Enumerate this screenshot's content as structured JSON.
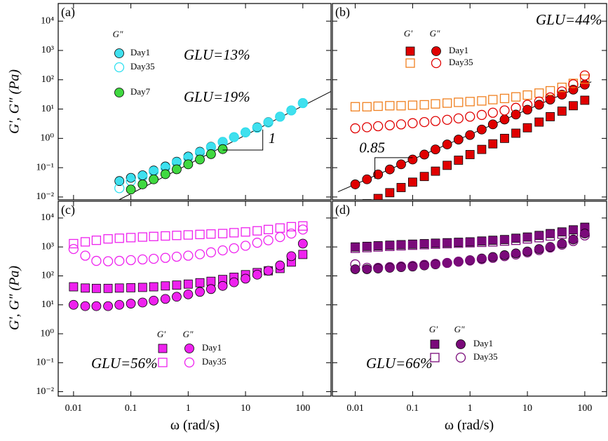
{
  "chart_data": [
    {
      "type": "scatter",
      "panel_label": "(a)",
      "ylabel": "G', G\" (Pa)",
      "xlog": true,
      "ylog": true,
      "xlim": [
        0.0054,
        310
      ],
      "ylim": [
        0.008,
        40000
      ],
      "xticks": [
        0.01,
        0.1,
        1,
        10,
        100
      ],
      "yticks": [
        {
          "value": 0.01,
          "label": "10⁻²"
        },
        {
          "value": 0.1,
          "label": "10⁻¹"
        },
        {
          "value": 1,
          "label": "10⁰"
        },
        {
          "value": 10,
          "label": "10¹"
        },
        {
          "value": 100,
          "label": "10²"
        },
        {
          "value": 1000,
          "label": "10³"
        },
        {
          "value": 10000,
          "label": "10⁴"
        }
      ],
      "quantities": [
        {
          "label": "G\"",
          "marker": "circle"
        }
      ],
      "series": [
        {
          "name": "Day1",
          "filled": true,
          "colors": [
            "#40e0ee"
          ],
          "x": [
            0.063,
            0.1,
            0.16,
            0.25,
            0.4,
            0.63,
            1,
            1.6,
            2.5,
            4,
            6.3,
            10,
            16,
            25,
            40,
            63,
            100
          ],
          "values": [
            [
              0.035,
              0.045,
              0.055,
              0.08,
              0.11,
              0.16,
              0.24,
              0.35,
              0.52,
              0.76,
              1.1,
              1.6,
              2.4,
              3.6,
              5.5,
              9,
              16
            ]
          ]
        },
        {
          "name": "Day35",
          "filled": false,
          "colors": [
            "#30e0f0"
          ],
          "x": [
            0.063,
            0.1,
            0.16,
            0.25,
            0.4,
            0.63,
            1,
            1.6,
            2.5,
            4,
            6.3,
            10,
            16,
            25,
            40,
            63,
            100
          ],
          "values": [
            [
              0.02,
              0.035,
              0.05,
              0.075,
              0.1,
              0.15,
              0.22,
              0.33,
              0.5,
              0.75,
              1.1,
              1.6,
              2.3,
              3.5,
              5.5,
              9,
              16
            ]
          ]
        },
        {
          "name": "Day7",
          "filled": true,
          "colors": [
            "#40d840"
          ],
          "x": [
            0.1,
            0.16,
            0.25,
            0.4,
            0.63,
            1,
            1.6,
            2.5,
            4
          ],
          "values": [
            [
              0.018,
              0.027,
              0.04,
              0.06,
              0.088,
              0.13,
              0.19,
              0.29,
              0.43
            ]
          ]
        }
      ],
      "annotations": [
        "GLU=13%",
        "GLU=19%"
      ],
      "fit_line": {
        "x": [
          0.062,
          310
        ],
        "values": [
          0.008,
          40
        ]
      },
      "slope_marker": {
        "x": [
          4,
          20,
          20
        ],
        "y": [
          0.4,
          0.4,
          2
        ],
        "label": "1"
      }
    },
    {
      "type": "scatter",
      "panel_label": "(b)",
      "xlog": true,
      "ylog": true,
      "xlim": [
        0.004,
        240
      ],
      "ylim": [
        0.008,
        40000
      ],
      "xticks": [
        0.01,
        0.1,
        1,
        10,
        100
      ],
      "yticks": [
        0.01,
        0.1,
        1,
        10,
        100,
        1000,
        10000
      ],
      "x": [
        0.01,
        0.016,
        0.025,
        0.04,
        0.063,
        0.1,
        0.16,
        0.25,
        0.4,
        0.63,
        1,
        1.6,
        2.5,
        4,
        6.3,
        10,
        16,
        25,
        40,
        63,
        100
      ],
      "quantities": [
        {
          "label": "G'",
          "marker": "square"
        },
        {
          "label": "G\"",
          "marker": "circle"
        }
      ],
      "series": [
        {
          "name": "Day1",
          "filled": true,
          "colors": [
            "#e00000",
            "#e00000"
          ],
          "values": [
            [
              0.0038,
              0.0059,
              0.0089,
              0.014,
              0.021,
              0.032,
              0.05,
              0.076,
              0.12,
              0.18,
              0.28,
              0.42,
              0.65,
              1.0,
              1.5,
              2.3,
              3.6,
              5.5,
              8.5,
              13,
              20
            ],
            [
              0.027,
              0.04,
              0.059,
              0.087,
              0.13,
              0.19,
              0.28,
              0.42,
              0.62,
              0.91,
              1.3,
              2.0,
              3.0,
              4.4,
              6.5,
              9.5,
              14,
              21,
              31,
              46,
              68
            ]
          ]
        },
        {
          "name": "Day35",
          "filled": false,
          "colors": [
            "#f08020",
            "#e00000"
          ],
          "values": [
            [
              12,
              12,
              12.5,
              13,
              13,
              13.5,
              14,
              15,
              16,
              17,
              18,
              19,
              21,
              23,
              26,
              30,
              35,
              42,
              55,
              75,
              105
            ],
            [
              2.2,
              2.4,
              2.6,
              2.8,
              3.0,
              3.3,
              3.6,
              3.9,
              4.3,
              4.8,
              5.5,
              6.3,
              7.5,
              9,
              11,
              14,
              18,
              25,
              40,
              70,
              140
            ]
          ]
        }
      ],
      "annotations": [
        "GLU=44%"
      ],
      "fit_line": {
        "x": [
          0.005,
          130
        ],
        "values": [
          0.015,
          85
        ]
      },
      "slope_marker": {
        "x": [
          0.022,
          0.022,
          0.1
        ],
        "y": [
          0.042,
          0.22,
          0.22
        ],
        "label": "0.85"
      }
    },
    {
      "type": "scatter",
      "panel_label": "(c)",
      "ylabel": "G', G\" (Pa)",
      "xlabel": "ω (rad/s)",
      "xlog": true,
      "ylog": true,
      "xlim": [
        0.0054,
        310
      ],
      "ylim": [
        0.007,
        38000
      ],
      "xticks": [
        0.01,
        0.1,
        1,
        10,
        100
      ],
      "yticks": [
        {
          "value": 0.01,
          "label": "10⁻²"
        },
        {
          "value": 0.1,
          "label": "10⁻¹"
        },
        {
          "value": 1,
          "label": "10⁰"
        },
        {
          "value": 10,
          "label": "10¹"
        },
        {
          "value": 100,
          "label": "10²"
        },
        {
          "value": 1000,
          "label": "10³"
        },
        {
          "value": 10000,
          "label": "10⁴"
        }
      ],
      "x": [
        0.01,
        0.016,
        0.025,
        0.04,
        0.063,
        0.1,
        0.16,
        0.25,
        0.4,
        0.63,
        1,
        1.6,
        2.5,
        4,
        6.3,
        10,
        16,
        25,
        40,
        63,
        100
      ],
      "quantities": [
        {
          "label": "G'",
          "marker": "square"
        },
        {
          "label": "G\"",
          "marker": "circle"
        }
      ],
      "series": [
        {
          "name": "Day1",
          "filled": true,
          "colors": [
            "#ee22ee",
            "#ee22ee"
          ],
          "values": [
            [
              42,
              38,
              37,
              37,
              38,
              39,
              40,
              42,
              45,
              48,
              52,
              58,
              65,
              75,
              90,
              110,
              130,
              150,
              180,
              300,
              550
            ],
            [
              10,
              9,
              9,
              9,
              10,
              11,
              12,
              14,
              16,
              19,
              23,
              28,
              35,
              45,
              60,
              80,
              110,
              150,
              230,
              480,
              1300
            ]
          ]
        },
        {
          "name": "Day35",
          "filled": false,
          "colors": [
            "#ee22ee",
            "#ee22ee"
          ],
          "values": [
            [
              1300,
              1500,
              1700,
              1900,
              2000,
              2100,
              2200,
              2300,
              2400,
              2500,
              2600,
              2700,
              2800,
              2900,
              3100,
              3300,
              3600,
              4000,
              4500,
              5000,
              5300
            ],
            [
              850,
              500,
              330,
              320,
              330,
              350,
              370,
              390,
              420,
              460,
              500,
              560,
              650,
              760,
              900,
              1100,
              1400,
              1700,
              2200,
              2900,
              4000
            ]
          ]
        }
      ],
      "annotations": [
        "GLU=56%"
      ]
    },
    {
      "type": "scatter",
      "panel_label": "(d)",
      "xlabel": "ω (rad/s)",
      "xlog": true,
      "ylog": true,
      "xlim": [
        0.004,
        240
      ],
      "ylim": [
        0.007,
        38000
      ],
      "xticks": [
        0.01,
        0.1,
        1,
        10,
        100
      ],
      "yticks": [
        0.01,
        0.1,
        1,
        10,
        100,
        1000,
        10000
      ],
      "x": [
        0.01,
        0.016,
        0.025,
        0.04,
        0.063,
        0.1,
        0.16,
        0.25,
        0.4,
        0.63,
        1,
        1.6,
        2.5,
        4,
        6.3,
        10,
        16,
        25,
        40,
        63,
        100
      ],
      "quantities": [
        {
          "label": "G'",
          "marker": "square"
        },
        {
          "label": "G\"",
          "marker": "circle"
        }
      ],
      "series": [
        {
          "name": "Day1",
          "filled": true,
          "colors": [
            "#7a0a7a",
            "#7a0a7a"
          ],
          "values": [
            [
              1000,
              1050,
              1100,
              1150,
              1200,
              1250,
              1300,
              1350,
              1400,
              1450,
              1500,
              1600,
              1700,
              1800,
              2000,
              2200,
              2500,
              2900,
              3300,
              3900,
              4800
            ],
            [
              170,
              170,
              180,
              190,
              200,
              210,
              230,
              250,
              280,
              310,
              350,
              400,
              450,
              520,
              600,
              700,
              850,
              1000,
              1300,
              1800,
              2900
            ]
          ]
        },
        {
          "name": "Day35",
          "filled": false,
          "colors": [
            "#7a0a7a",
            "#7a0a7a"
          ],
          "values": [
            [
              900,
              950,
              1000,
              1050,
              1100,
              1150,
              1200,
              1250,
              1300,
              1350,
              1400,
              1450,
              1500,
              1600,
              1700,
              1900,
              2100,
              2400,
              2800,
              3300,
              4000
            ],
            [
              250,
              190,
              190,
              200,
              210,
              220,
              240,
              260,
              280,
              310,
              340,
              380,
              420,
              480,
              550,
              650,
              780,
              950,
              1200,
              1600,
              2500
            ]
          ]
        }
      ],
      "annotations": [
        "GLU=66%"
      ]
    }
  ]
}
